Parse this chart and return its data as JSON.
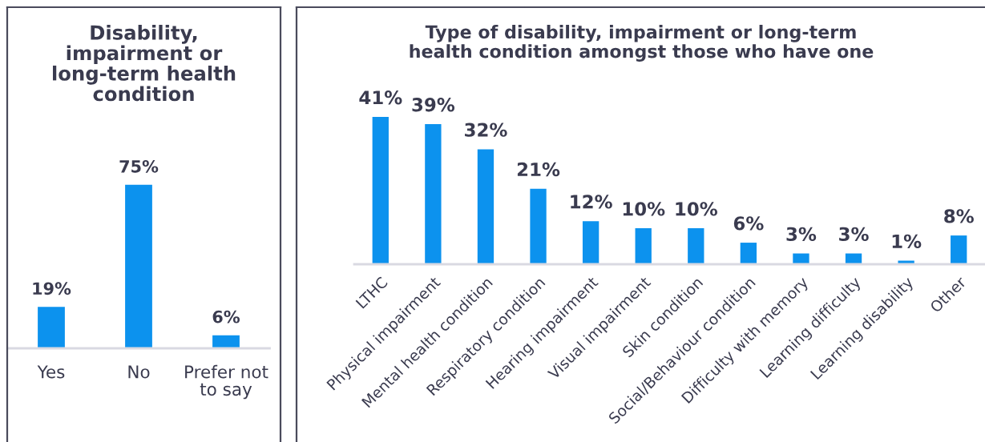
{
  "chart_data": [
    {
      "type": "bar",
      "title": "Disability,\nimpairment or\nlong-term health\ncondition",
      "categories": [
        "Yes",
        "No",
        "Prefer not\nto say"
      ],
      "values": [
        19,
        75,
        6
      ],
      "value_labels": [
        "19%",
        "75%",
        "6%"
      ],
      "color": "#0c92ee",
      "tick_labels": "x"
    },
    {
      "type": "bar",
      "title": "Type of disability, impairment or long-term\nhealth condition amongst those who have one",
      "categories": [
        "LTHC",
        "Physical impairment",
        "Mental health condition",
        "Respiratory condition",
        "Hearing impairment",
        "Visual impairment",
        "Skin condition",
        "Social/Behaviour condition",
        "Difficulty with memory",
        "Learning difficulty",
        "Learning disability",
        "Other"
      ],
      "values": [
        41,
        39,
        32,
        21,
        12,
        10,
        10,
        6,
        3,
        3,
        1,
        8
      ],
      "value_labels": [
        "41%",
        "39%",
        "32%",
        "21%",
        "12%",
        "10%",
        "10%",
        "6%",
        "3%",
        "3%",
        "1%",
        "8%"
      ],
      "color": "#0c92ee",
      "tick_labels": "x"
    }
  ]
}
